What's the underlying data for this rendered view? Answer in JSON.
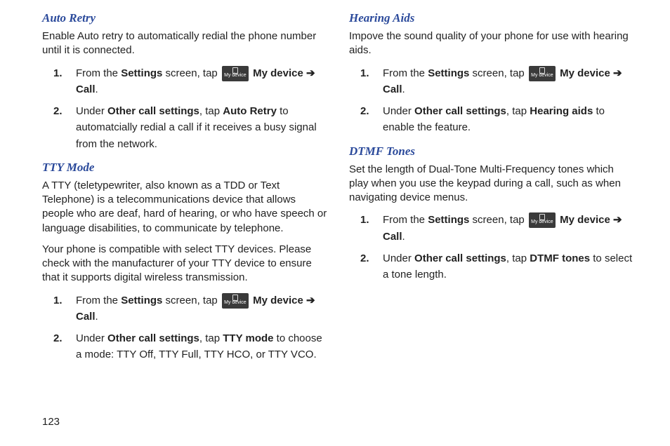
{
  "pageNumber": "123",
  "iconLabel": "My device",
  "left": {
    "sections": [
      {
        "heading": "Auto Retry",
        "intro": "Enable Auto retry to automatically redial the phone number until it is connected.",
        "steps": [
          {
            "num": "1.",
            "pre": "From the ",
            "b1": "Settings",
            "mid1": " screen, tap ",
            "hasIcon": true,
            "b2": "My device",
            "arrow": " ➔ ",
            "b3": "Call",
            "post": "."
          },
          {
            "num": "2.",
            "pre": "Under ",
            "b1": "Other call settings",
            "mid1": ", tap ",
            "b2": "Auto Retry",
            "post": " to automatcially redial a call if it receives a busy signal from the network."
          }
        ]
      },
      {
        "heading": "TTY Mode",
        "intro": "A TTY (teletypewriter, also known as a TDD or Text Telephone) is a telecommunications device that allows people who are deaf, hard of hearing, or who have speech or language disabilities, to communicate by telephone.",
        "para2": "Your phone is compatible with select TTY devices. Please check with the manufacturer of your TTY device to ensure that it supports digital wireless transmission.",
        "steps": [
          {
            "num": "1.",
            "pre": "From the ",
            "b1": "Settings",
            "mid1": " screen, tap ",
            "hasIcon": true,
            "b2": "My device",
            "arrow": " ➔ ",
            "b3": "Call",
            "post": "."
          },
          {
            "num": "2.",
            "pre": "Under ",
            "b1": "Other call settings",
            "mid1": ", tap ",
            "b2": "TTY mode",
            "post": " to choose a mode: TTY Off, TTY Full, TTY HCO, or TTY VCO."
          }
        ]
      }
    ]
  },
  "right": {
    "sections": [
      {
        "heading": "Hearing Aids",
        "intro": "Impove the sound quality of your phone for use with hearing aids.",
        "steps": [
          {
            "num": "1.",
            "pre": "From the ",
            "b1": "Settings",
            "mid1": " screen, tap ",
            "hasIcon": true,
            "b2": "My device",
            "arrow": " ➔ ",
            "b3": "Call",
            "post": "."
          },
          {
            "num": "2.",
            "pre": "Under ",
            "b1": "Other call settings",
            "mid1": ", tap ",
            "b2": "Hearing aids",
            "post": " to enable the feature."
          }
        ]
      },
      {
        "heading": "DTMF Tones",
        "intro": "Set the length of Dual-Tone Multi-Frequency tones which play when you use the keypad during a call, such as when navigating device menus.",
        "steps": [
          {
            "num": "1.",
            "pre": "From the ",
            "b1": "Settings",
            "mid1": " screen, tap ",
            "hasIcon": true,
            "b2": "My device",
            "arrow": " ➔ ",
            "b3": "Call",
            "post": "."
          },
          {
            "num": "2.",
            "pre": "Under ",
            "b1": "Other call settings",
            "mid1": ", tap ",
            "b2": "DTMF tones",
            "post": " to select a tone length."
          }
        ]
      }
    ]
  }
}
